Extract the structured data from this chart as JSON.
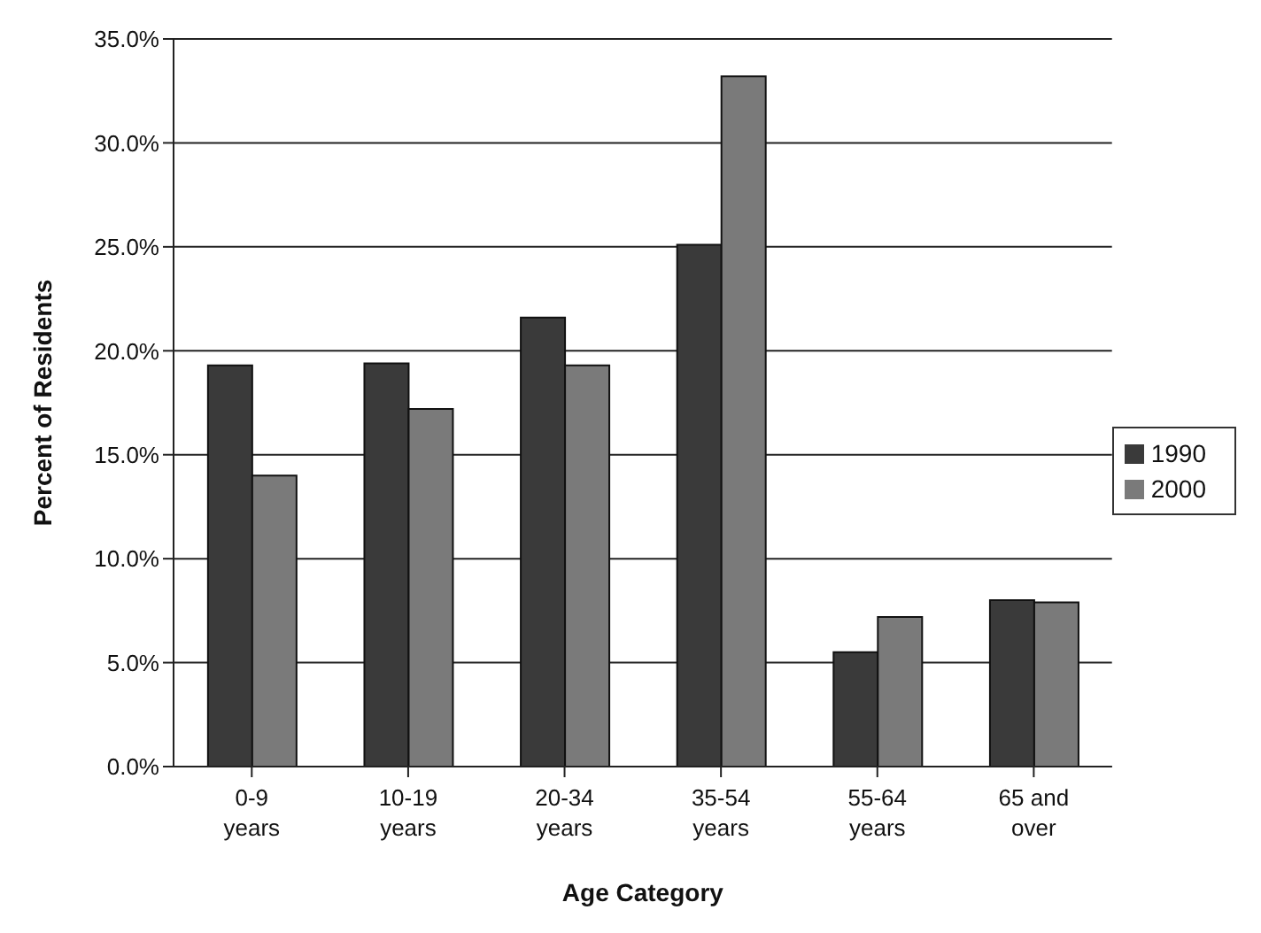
{
  "chart_data": {
    "type": "bar",
    "xlabel": "Age Category",
    "ylabel": "Percent of Residents",
    "categories": [
      "0-9 years",
      "10-19 years",
      "20-34 years",
      "35-54 years",
      "55-64 years",
      "65 and over"
    ],
    "series": [
      {
        "name": "1990",
        "color": "#3a3a3a",
        "values": [
          19.3,
          19.4,
          21.6,
          25.1,
          5.5,
          8.0
        ]
      },
      {
        "name": "2000",
        "color": "#7a7a7a",
        "values": [
          14.0,
          17.2,
          19.3,
          33.2,
          7.2,
          7.9
        ]
      }
    ],
    "ylim": [
      0,
      35
    ],
    "yticks": [
      {
        "value": 0,
        "label": "0.0%"
      },
      {
        "value": 5,
        "label": "5.0%"
      },
      {
        "value": 10,
        "label": "10.0%"
      },
      {
        "value": 15,
        "label": "15.0%"
      },
      {
        "value": 20,
        "label": "20.0%"
      },
      {
        "value": 25,
        "label": "25.0%"
      },
      {
        "value": 30,
        "label": "30.0%"
      },
      {
        "value": 35,
        "label": "35.0%"
      }
    ],
    "grid": "y",
    "legend": "right"
  }
}
